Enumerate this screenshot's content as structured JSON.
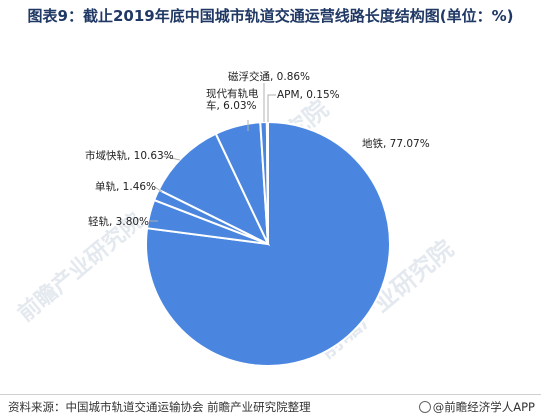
{
  "title": "图表9：截止2019年底中国城市轨道交通运营线路长度结构图(单位：%)",
  "source": "资料来源：中国城市轨道交通运输协会 前瞻产业研究院整理",
  "brand": "@前瞻经济学人APP",
  "watermark": "前瞻产业研究院",
  "colors": {
    "slice": "#4a86e0",
    "stroke": "#ffffff",
    "leader": "#b0b0b0"
  },
  "chart_data": {
    "type": "pie",
    "title": "图表9：截止2019年底中国城市轨道交通运营线路长度结构图(单位：%)",
    "unit": "%",
    "slices": [
      {
        "name": "地铁",
        "value": 77.07,
        "label": "地铁, 77.07%"
      },
      {
        "name": "轻轨",
        "value": 3.8,
        "label": "轻轨, 3.80%"
      },
      {
        "name": "单轨",
        "value": 1.46,
        "label": "单轨, 1.46%"
      },
      {
        "name": "市域快轨",
        "value": 10.63,
        "label": "市域快轨, 10.63%"
      },
      {
        "name": "现代有轨电车",
        "value": 6.03,
        "label_lines": [
          "现代有轨电",
          "车, 6.03%"
        ]
      },
      {
        "name": "磁浮交通",
        "value": 0.86,
        "label": "磁浮交通, 0.86%"
      },
      {
        "name": "APM",
        "value": 0.15,
        "label": "APM, 0.15%"
      }
    ]
  }
}
